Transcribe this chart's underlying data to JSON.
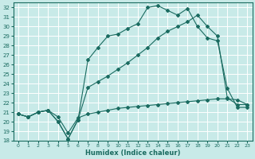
{
  "xlabel": "Humidex (Indice chaleur)",
  "background_color": "#c8eae8",
  "grid_color": "#ffffff",
  "line_color": "#1a6b60",
  "xlim": [
    -0.5,
    23.5
  ],
  "ylim": [
    18,
    32.5
  ],
  "xticks": [
    0,
    1,
    2,
    3,
    4,
    5,
    6,
    7,
    8,
    9,
    10,
    11,
    12,
    13,
    14,
    15,
    16,
    17,
    18,
    19,
    20,
    21,
    22,
    23
  ],
  "yticks": [
    18,
    19,
    20,
    21,
    22,
    23,
    24,
    25,
    26,
    27,
    28,
    29,
    30,
    31,
    32
  ],
  "line1_x": [
    0,
    1,
    2,
    3,
    4,
    5,
    6,
    7,
    8,
    9,
    10,
    11,
    12,
    13,
    14,
    15,
    16,
    17,
    18,
    19,
    20,
    21,
    22,
    23
  ],
  "line1_y": [
    20.8,
    20.5,
    21.0,
    21.2,
    20.0,
    18.2,
    20.2,
    26.5,
    27.8,
    29.0,
    29.2,
    29.8,
    30.3,
    32.0,
    32.2,
    31.7,
    31.2,
    31.9,
    30.0,
    28.8,
    28.5,
    23.5,
    21.5,
    21.5
  ],
  "line2_x": [
    0,
    1,
    2,
    3,
    4,
    5,
    6,
    7,
    8,
    9,
    10,
    11,
    12,
    13,
    14,
    15,
    16,
    17,
    18,
    19,
    20,
    21,
    22,
    23
  ],
  "line2_y": [
    20.8,
    20.5,
    21.0,
    21.2,
    20.0,
    18.2,
    20.2,
    23.6,
    24.2,
    24.8,
    25.5,
    26.2,
    27.0,
    27.8,
    28.8,
    29.5,
    30.0,
    30.5,
    31.2,
    30.0,
    29.0,
    22.5,
    21.8,
    21.8
  ],
  "line3_x": [
    0,
    1,
    2,
    3,
    4,
    5,
    6,
    7,
    8,
    9,
    10,
    11,
    12,
    13,
    14,
    15,
    16,
    17,
    18,
    19,
    20,
    21,
    22,
    23
  ],
  "line3_y": [
    20.8,
    20.5,
    21.0,
    21.2,
    20.5,
    18.8,
    20.4,
    20.8,
    21.0,
    21.2,
    21.4,
    21.5,
    21.6,
    21.7,
    21.8,
    21.9,
    22.0,
    22.1,
    22.2,
    22.3,
    22.4,
    22.4,
    22.3,
    21.8
  ]
}
